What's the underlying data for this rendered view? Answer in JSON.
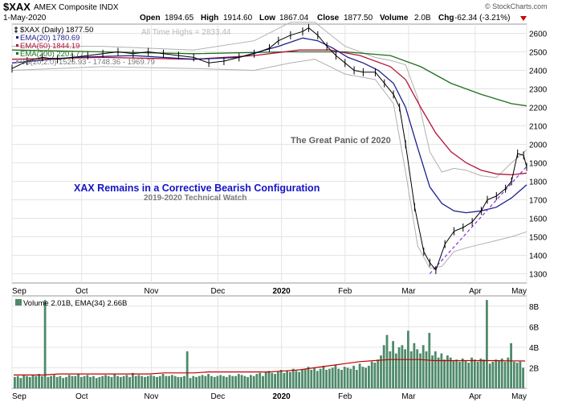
{
  "header": {
    "symbol": "$XAX",
    "name": "AMEX Composite INDX",
    "date": "1-May-2020",
    "open_label": "Open",
    "open": "1894.65",
    "high_label": "High",
    "high": "1914.60",
    "low_label": "Low",
    "low": "1867.04",
    "close_label": "Close",
    "close": "1877.50",
    "volume_label": "Volume",
    "volume": "2.0B",
    "chg_label": "Chg",
    "chg": "-62.34 (-3.21%)",
    "chg_icon": "down-triangle-icon",
    "watermark": "© StockCharts.com"
  },
  "legend": [
    {
      "text": "$XAX (Daily) 1877.50",
      "color": "#000000",
      "icon": "candlestick-icon"
    },
    {
      "text": "EMA(20) 1780.69",
      "color": "#1e1e8c"
    },
    {
      "text": "EMA(50) 1844.19",
      "color": "#b4143c"
    },
    {
      "text": "EMA(200) 2207.77",
      "color": "#1e6e1e"
    },
    {
      "text": "BB(20,2.0) 1526.93 - 1748.36 - 1969.79",
      "color": "#999999"
    }
  ],
  "annotations": {
    "ath": "All Time Highs = 2833.44",
    "panic": "The Great Panic of 2020",
    "main": "XAX Remains in a Corrective Bearish Configuration",
    "sub": "2019-2020 Technical Watch"
  },
  "colors": {
    "ema20": "#1e1e8c",
    "ema50": "#b4143c",
    "ema200": "#1e6e1e",
    "bb": "#b0b0b0",
    "bb_mid": "#9999cc",
    "price": "#000000",
    "volume_bar": "#4e8a6a",
    "volume_ema": "#c00000",
    "trendline": "#8a2be2",
    "main_annotation": "#1414c8",
    "chg": "#cc0000"
  },
  "chart_data": {
    "type": "line",
    "price_axis": {
      "ticks": [
        1300,
        1400,
        1500,
        1600,
        1700,
        1800,
        1900,
        2000,
        2100,
        2200,
        2300,
        2400,
        2500,
        2600
      ],
      "ylim": [
        1250,
        2650
      ]
    },
    "x_axis": {
      "labels": [
        "Sep",
        "Oct",
        "Nov",
        "Dec",
        "2020",
        "Feb",
        "Mar",
        "Apr",
        "May"
      ],
      "xlim": [
        0,
        170
      ],
      "label_positions": [
        0,
        23,
        46,
        68,
        89,
        110,
        131,
        153,
        170
      ]
    },
    "series": [
      {
        "name": "$XAX (Daily)",
        "points": [
          [
            0,
            2410
          ],
          [
            5,
            2450
          ],
          [
            10,
            2470
          ],
          [
            15,
            2460
          ],
          [
            20,
            2470
          ],
          [
            25,
            2480
          ],
          [
            30,
            2490
          ],
          [
            35,
            2500
          ],
          [
            40,
            2490
          ],
          [
            45,
            2500
          ],
          [
            50,
            2490
          ],
          [
            55,
            2480
          ],
          [
            60,
            2470
          ],
          [
            65,
            2440
          ],
          [
            70,
            2450
          ],
          [
            75,
            2470
          ],
          [
            80,
            2490
          ],
          [
            85,
            2520
          ],
          [
            88,
            2560
          ],
          [
            92,
            2590
          ],
          [
            96,
            2610
          ],
          [
            98,
            2630
          ],
          [
            101,
            2590
          ],
          [
            104,
            2530
          ],
          [
            107,
            2480
          ],
          [
            110,
            2440
          ],
          [
            113,
            2400
          ],
          [
            116,
            2390
          ],
          [
            120,
            2390
          ],
          [
            123,
            2330
          ],
          [
            126,
            2270
          ],
          [
            128,
            2200
          ],
          [
            130,
            2000
          ],
          [
            133,
            1660
          ],
          [
            136,
            1420
          ],
          [
            138,
            1360
          ],
          [
            140,
            1320
          ],
          [
            143,
            1460
          ],
          [
            146,
            1530
          ],
          [
            149,
            1550
          ],
          [
            152,
            1580
          ],
          [
            155,
            1640
          ],
          [
            157,
            1700
          ],
          [
            160,
            1720
          ],
          [
            163,
            1760
          ],
          [
            165,
            1800
          ],
          [
            167,
            1950
          ],
          [
            169,
            1940
          ],
          [
            170,
            1877.5
          ]
        ]
      },
      {
        "name": "EMA(20)",
        "value": "1780.69",
        "points": [
          [
            0,
            2440
          ],
          [
            20,
            2470
          ],
          [
            40,
            2480
          ],
          [
            60,
            2460
          ],
          [
            75,
            2470
          ],
          [
            88,
            2530
          ],
          [
            96,
            2575
          ],
          [
            101,
            2560
          ],
          [
            106,
            2520
          ],
          [
            111,
            2470
          ],
          [
            116,
            2440
          ],
          [
            121,
            2400
          ],
          [
            126,
            2330
          ],
          [
            130,
            2200
          ],
          [
            134,
            1980
          ],
          [
            138,
            1770
          ],
          [
            142,
            1680
          ],
          [
            146,
            1640
          ],
          [
            150,
            1630
          ],
          [
            155,
            1640
          ],
          [
            160,
            1660
          ],
          [
            165,
            1710
          ],
          [
            170,
            1780.69
          ]
        ]
      },
      {
        "name": "EMA(50)",
        "value": "1844.19",
        "points": [
          [
            0,
            2460
          ],
          [
            30,
            2470
          ],
          [
            60,
            2460
          ],
          [
            80,
            2480
          ],
          [
            95,
            2510
          ],
          [
            105,
            2510
          ],
          [
            115,
            2480
          ],
          [
            125,
            2420
          ],
          [
            130,
            2350
          ],
          [
            135,
            2200
          ],
          [
            140,
            2060
          ],
          [
            145,
            1960
          ],
          [
            150,
            1900
          ],
          [
            155,
            1860
          ],
          [
            160,
            1840
          ],
          [
            165,
            1835
          ],
          [
            170,
            1844.19
          ]
        ]
      },
      {
        "name": "EMA(200)",
        "value": "2207.77",
        "points": [
          [
            0,
            2510
          ],
          [
            30,
            2500
          ],
          [
            60,
            2490
          ],
          [
            90,
            2500
          ],
          [
            110,
            2500
          ],
          [
            125,
            2480
          ],
          [
            135,
            2420
          ],
          [
            145,
            2330
          ],
          [
            155,
            2270
          ],
          [
            165,
            2220
          ],
          [
            170,
            2207.77
          ]
        ]
      },
      {
        "name": "BB(20,2.0) upper",
        "points": [
          [
            0,
            2530
          ],
          [
            30,
            2530
          ],
          [
            60,
            2510
          ],
          [
            80,
            2560
          ],
          [
            92,
            2660
          ],
          [
            100,
            2660
          ],
          [
            110,
            2530
          ],
          [
            120,
            2470
          ],
          [
            126,
            2450
          ],
          [
            130,
            2430
          ],
          [
            134,
            2250
          ],
          [
            138,
            1960
          ],
          [
            142,
            1850
          ],
          [
            146,
            1870
          ],
          [
            150,
            1860
          ],
          [
            155,
            1830
          ],
          [
            160,
            1820
          ],
          [
            165,
            1900
          ],
          [
            170,
            1969.79
          ]
        ]
      },
      {
        "name": "BB(20,2.0) lower",
        "points": [
          [
            0,
            2400
          ],
          [
            30,
            2420
          ],
          [
            60,
            2410
          ],
          [
            80,
            2400
          ],
          [
            92,
            2440
          ],
          [
            100,
            2460
          ],
          [
            110,
            2380
          ],
          [
            120,
            2350
          ],
          [
            126,
            2220
          ],
          [
            130,
            1850
          ],
          [
            134,
            1450
          ],
          [
            138,
            1330
          ],
          [
            142,
            1340
          ],
          [
            146,
            1420
          ],
          [
            150,
            1440
          ],
          [
            155,
            1460
          ],
          [
            160,
            1480
          ],
          [
            165,
            1500
          ],
          [
            170,
            1526.93
          ]
        ]
      },
      {
        "name": "Trendline",
        "points": [
          [
            138,
            1300
          ],
          [
            170,
            1880
          ]
        ]
      }
    ],
    "volume": {
      "label": "Volume 2.01B, EMA(34) 2.66B",
      "ticks": [
        2,
        4,
        6,
        8
      ],
      "tick_suffix": "B",
      "ylim": [
        0,
        9
      ],
      "values": [
        1.1,
        1.2,
        1.0,
        1.3,
        1.2,
        1.1,
        1.3,
        1.2,
        1.4,
        1.2,
        8.6,
        1.1,
        1.2,
        1.3,
        1.1,
        1.2,
        1.0,
        1.1,
        1.3,
        1.2,
        1.2,
        1.4,
        1.1,
        1.2,
        1.3,
        1.1,
        1.2,
        1.0,
        1.1,
        1.2,
        1.3,
        1.2,
        1.1,
        1.4,
        1.2,
        1.1,
        1.2,
        1.3,
        1.1,
        1.5,
        1.2,
        1.3,
        1.2,
        1.1,
        1.2,
        1.3,
        1.2,
        1.1,
        1.2,
        1.4,
        1.2,
        1.2,
        1.3,
        1.2,
        1.1,
        1.1,
        1.2,
        3.6,
        1.0,
        1.2,
        1.1,
        1.2,
        1.3,
        1.2,
        1.4,
        1.2,
        1.1,
        1.2,
        1.3,
        1.2,
        1.1,
        1.3,
        1.2,
        1.2,
        1.4,
        1.3,
        1.2,
        1.1,
        1.3,
        1.2,
        1.4,
        1.5,
        1.2,
        1.6,
        1.7,
        1.5,
        1.4,
        1.6,
        1.8,
        1.5,
        1.7,
        1.6,
        1.9,
        1.7,
        1.6,
        1.8,
        1.9,
        2.1,
        1.8,
        2.0,
        1.7,
        1.9,
        2.2,
        1.8,
        1.9,
        2.0,
        2.3,
        1.9,
        1.8,
        2.1,
        2.0,
        1.9,
        2.2,
        1.8,
        2.4,
        2.1,
        2.0,
        2.2,
        2.6,
        2.5,
        2.8,
        3.2,
        4.2,
        5.2,
        3.6,
        4.6,
        3.4,
        4.0,
        4.2,
        3.8,
        5.6,
        3.6,
        4.4,
        3.8,
        3.4,
        4.2,
        3.6,
        5.4,
        3.2,
        3.6,
        3.0,
        3.4,
        2.8,
        3.2,
        3.0,
        2.7,
        2.8,
        2.6,
        2.9,
        2.7,
        2.5,
        3.0,
        2.8,
        2.6,
        2.9,
        2.8,
        8.6,
        2.4,
        2.6,
        2.8,
        2.7,
        2.9,
        2.6,
        3.0,
        4.4,
        2.6,
        2.5,
        2.6,
        2.0
      ],
      "ema": [
        1.3,
        1.3,
        1.3,
        1.4,
        1.4,
        1.4,
        1.4,
        1.4,
        1.4,
        1.4,
        1.5,
        1.5,
        1.5,
        1.6,
        1.6,
        1.6,
        1.6,
        1.6,
        1.7,
        1.8,
        2.0,
        2.2,
        2.4,
        2.6,
        2.7,
        2.8,
        2.8,
        2.8,
        2.7,
        2.7,
        2.7,
        2.7,
        2.7,
        2.68,
        2.66
      ]
    }
  }
}
